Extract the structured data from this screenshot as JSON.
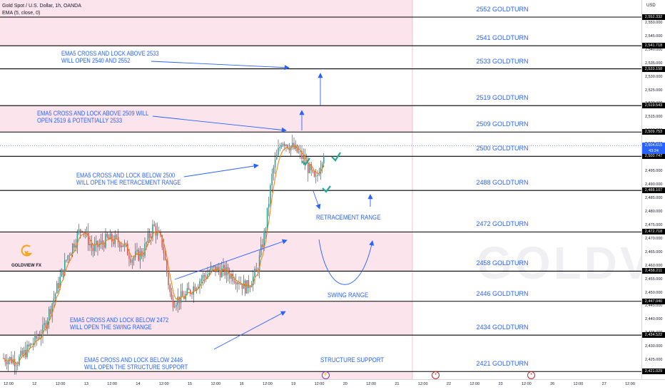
{
  "symbol": {
    "title": "Gold Spot / U.S. Dollar, 1h, OANDA",
    "indicator": "EMA (5, close, 0)"
  },
  "currency": "USD",
  "colors": {
    "zone": "#fce4ec",
    "line": "#000000",
    "text": "#2962ff",
    "candle_up": "#26a69a",
    "candle_down": "#ef5350",
    "candle_line": "#131722",
    "ema": "#f57c00",
    "check": "#22ab94",
    "price_tag_bg": "#2962ff"
  },
  "levels": [
    {
      "label": "2552 GOLDTURN",
      "value": 2552.332,
      "tag": "2,552.332"
    },
    {
      "label": "2541 GOLDTURN",
      "value": 2541.718,
      "tag": "2,541.718"
    },
    {
      "label": "2533 GOLDTURN",
      "value": 2533.158,
      "tag": "2,533.158"
    },
    {
      "label": "2519 GOLDTURN",
      "value": 2519.543,
      "tag": "2,519.543"
    },
    {
      "label": "2509 GOLDTURN",
      "value": 2509.753,
      "tag": "2,509.753"
    },
    {
      "label": "2500 GOLDTURN",
      "value": 2500.747,
      "tag": "2,500.747"
    },
    {
      "label": "2488 GOLDTURN",
      "value": 2488.107,
      "tag": "2,488.107"
    },
    {
      "label": "2472 GOLDTURN",
      "value": 2472.718,
      "tag": "2,472.718"
    },
    {
      "label": "2458 GOLDTURN",
      "value": 2458.211,
      "tag": "2,458.211"
    },
    {
      "label": "2446 GOLDTURN",
      "value": 2447.04,
      "tag": "2,447.040"
    },
    {
      "label": "2434 GOLDTURN",
      "value": 2434.522,
      "tag": "2,434.522"
    },
    {
      "label": "2421 GOLDTURN",
      "value": 2421.029,
      "tag": "2,421.029"
    }
  ],
  "current_price": {
    "tag": "2,504.615",
    "countdown": "43:24",
    "value": 2504.615
  },
  "price_ticks": [
    "2,550.000",
    "2,545.000",
    "2,540.000",
    "2,535.000",
    "2,530.000",
    "2,525.000",
    "2,520.000",
    "2,515.000",
    "2,510.000",
    "2,505.000",
    "2,500.000",
    "2,495.000",
    "2,490.000",
    "2,485.000",
    "2,480.000",
    "2,475.000",
    "2,470.000",
    "2,465.000",
    "2,460.000",
    "2,455.000",
    "2,450.000",
    "2,445.000",
    "2,440.000",
    "2,435.000",
    "2,430.000",
    "2,425.000"
  ],
  "time_ticks": [
    "12:00",
    "12",
    "12:00",
    "13",
    "12:00",
    "14",
    "12:00",
    "15",
    "12:00",
    "16",
    "12:00",
    "19",
    "12:00",
    "20",
    "12:00",
    "21",
    "12:00",
    "22",
    "12:00",
    "23",
    "12:00",
    "26",
    "12:00",
    "27",
    "12:00"
  ],
  "annotations": [
    "EMA5 CROSS AND LOCK ABOVE 2533\nWILL OPEN 2540 AND 2552",
    "EMA5 CROSS AND LOCK ABOVE 2509 WILL\nOPEN 2519 & POTENTIALLY 2533",
    "EMA5 CROSS AND LOCK BELOW 2500\nWILL OPEN THE RETRACEMENT RANGE",
    "EMA5 CROSS AND LOCK BELOW 2472\nWILL OPEN THE SWING RANGE",
    "EMA5 CROSS AND LOCK BELOW 2446\nWILL OPEN THE STRUCTURE SUPPORT"
  ],
  "zone_labels": {
    "retracement": "RETRACEMENT RANGE",
    "swing": "SWING RANGE",
    "structure": "STRUCTURE SUPPORT"
  },
  "logo": {
    "text": "GOLDVIEW FX",
    "watermark": "GOLDV"
  }
}
